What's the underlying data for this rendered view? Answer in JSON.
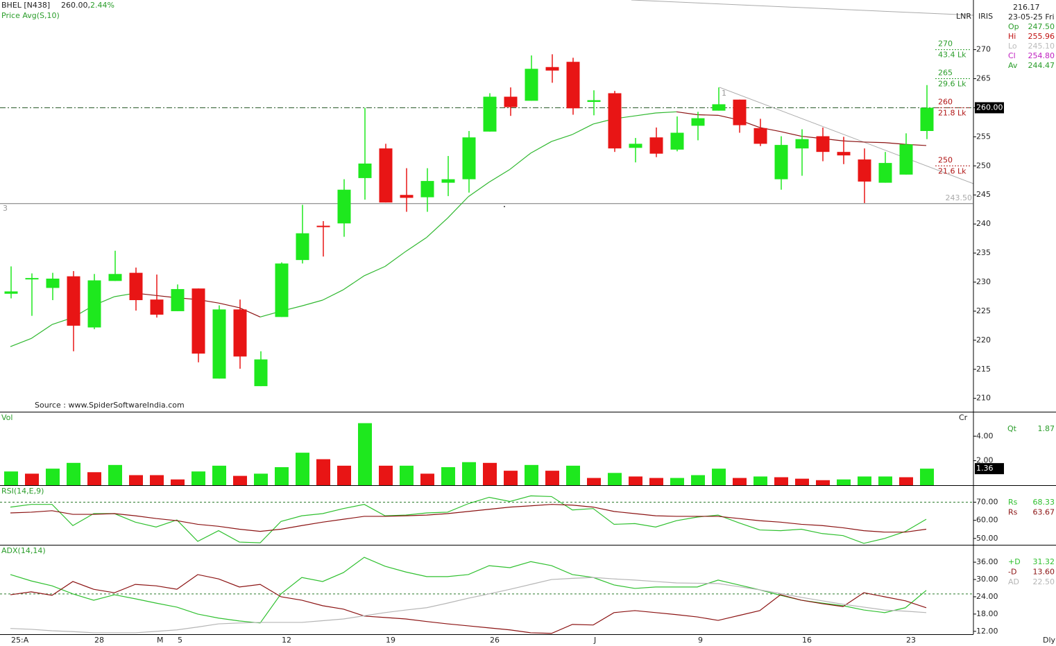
{
  "header": {
    "symbol": "BHEL [N438]",
    "price": "260.00,",
    "change": "2.44%",
    "cursor_value": "216.17",
    "date": "23-05-25 Fri",
    "tags": [
      "LNR",
      "IRIS"
    ],
    "ohlc": [
      {
        "key": "Op",
        "value": "247.50",
        "color": "#2a9d2a"
      },
      {
        "key": "Hi",
        "value": "255.96",
        "color": "#c01010"
      },
      {
        "key": "Lo",
        "value": "245.10",
        "color": "#bbbbbb"
      },
      {
        "key": "Cl",
        "value": "254.80",
        "color": "#c020c0"
      },
      {
        "key": "Av",
        "value": "244.47",
        "color": "#2a9d2a"
      }
    ]
  },
  "chart_data": [
    {
      "type": "candlestick",
      "categories": [
        "25:A",
        null,
        null,
        null,
        "28",
        null,
        null,
        "M",
        "5",
        null,
        null,
        null,
        null,
        "12",
        null,
        null,
        null,
        null,
        "19",
        null,
        null,
        null,
        null,
        "26",
        null,
        null,
        null,
        null,
        "J",
        null,
        null,
        null,
        null,
        "9",
        null,
        null,
        null,
        null,
        "16",
        null,
        null,
        null,
        null,
        "23",
        null
      ],
      "period": "Dly",
      "open": [
        228.0,
        230.5,
        229.0,
        231.0,
        222.2,
        230.2,
        231.6,
        227.0,
        225.0,
        228.9,
        213.4,
        225.3,
        212.1,
        224.0,
        233.8,
        239.7,
        240.1,
        247.9,
        253.0,
        245.0,
        244.6,
        247.1,
        247.7,
        255.9,
        261.9,
        261.2,
        267.0,
        267.9,
        261.0,
        262.5,
        253.1,
        254.9,
        252.8,
        256.9,
        259.5,
        261.4,
        256.5,
        247.7,
        253.0,
        255.1,
        252.4,
        251.1,
        247.1,
        248.5,
        256.0
      ],
      "high": [
        232.7,
        231.5,
        231.6,
        231.9,
        231.4,
        235.4,
        232.5,
        231.3,
        229.6,
        228.9,
        226.0,
        227.0,
        218.1,
        233.4,
        243.3,
        240.5,
        247.7,
        260.0,
        253.8,
        249.6,
        249.6,
        251.7,
        256.0,
        262.5,
        263.5,
        269.0,
        269.2,
        268.6,
        263.0,
        262.9,
        254.8,
        256.6,
        258.5,
        259.3,
        263.5,
        261.4,
        258.1,
        255.1,
        256.3,
        256.6,
        255.0,
        253.0,
        252.4,
        255.6,
        263.9
      ],
      "low": [
        227.2,
        224.2,
        226.9,
        218.1,
        221.9,
        230.2,
        225.1,
        223.9,
        225.0,
        216.2,
        213.4,
        215.1,
        212.1,
        224.0,
        233.2,
        234.4,
        237.8,
        244.2,
        243.7,
        242.1,
        242.1,
        244.8,
        245.4,
        255.9,
        258.6,
        261.2,
        264.3,
        258.8,
        258.7,
        252.4,
        250.6,
        251.5,
        252.5,
        254.4,
        259.5,
        255.7,
        253.4,
        245.9,
        248.3,
        250.8,
        250.3,
        243.6,
        247.1,
        248.5,
        254.6
      ],
      "close": [
        228.4,
        230.7,
        230.6,
        222.5,
        230.3,
        231.4,
        226.9,
        224.4,
        228.8,
        217.7,
        225.3,
        217.2,
        216.7,
        233.2,
        238.4,
        239.5,
        245.9,
        250.4,
        243.7,
        244.5,
        247.4,
        247.7,
        254.9,
        261.9,
        260.1,
        266.7,
        266.4,
        259.9,
        261.3,
        253.0,
        253.8,
        252.1,
        255.7,
        258.2,
        260.6,
        257.0,
        253.8,
        253.6,
        254.6,
        252.4,
        251.8,
        247.3,
        250.5,
        253.7,
        260.0
      ],
      "up_color": "#1ee81e",
      "down_color": "#e81515",
      "ma": {
        "name": "Price Avg(S,10)",
        "up_color": "#2fb82f",
        "down_color": "#8b1212",
        "values": [
          218.9,
          220.3,
          222.7,
          223.9,
          226.0,
          227.5,
          228.1,
          227.7,
          227.3,
          227.0,
          226.4,
          225.6,
          224.0,
          225.0,
          225.9,
          226.9,
          228.7,
          231.1,
          232.7,
          235.3,
          237.7,
          241.0,
          244.7,
          247.2,
          249.4,
          252.2,
          254.2,
          255.4,
          257.2,
          258.1,
          258.6,
          259.1,
          259.3,
          258.8,
          258.7,
          257.9,
          256.6,
          255.9,
          255.1,
          254.7,
          254.3,
          254.1,
          254.0,
          253.7,
          253.5
        ]
      },
      "ylim": [
        207.7,
        278.3
      ],
      "yticks": [
        210,
        215,
        220,
        225,
        230,
        235,
        240,
        245,
        250,
        255,
        260,
        265,
        270
      ],
      "last_price": {
        "value": 260,
        "label": "260.00"
      },
      "support": {
        "value": 243.5,
        "label": "243.50"
      },
      "levels": [
        {
          "price": 270,
          "volume": "43.4 Lk",
          "color": "#2a9d2a"
        },
        {
          "price": 265,
          "volume": "29.6 Lk",
          "color": "#2a9d2a"
        },
        {
          "price": 260,
          "volume": "21.8 Lk",
          "color": "#b01414"
        },
        {
          "price": 250,
          "volume": "21.6 Lk",
          "color": "#b01414"
        }
      ],
      "source": "Source : www.SpiderSoftwareIndia.com",
      "markers": [
        "3",
        "1"
      ]
    },
    {
      "type": "bar",
      "title": "Vol",
      "unit": "Cr",
      "last_label": "1.36",
      "qty": {
        "key": "Qt",
        "value": "1.87"
      },
      "values": [
        1.12,
        0.94,
        1.35,
        1.82,
        1.06,
        1.65,
        0.82,
        0.82,
        0.47,
        1.12,
        1.59,
        0.76,
        0.94,
        1.47,
        2.65,
        2.12,
        1.59,
        5.06,
        1.59,
        1.59,
        0.94,
        1.47,
        1.88,
        1.82,
        1.18,
        1.65,
        1.18,
        1.59,
        0.59,
        1.0,
        0.71,
        0.59,
        0.59,
        0.82,
        1.35,
        0.59,
        0.71,
        0.65,
        0.53,
        0.41,
        0.47,
        0.71,
        0.71,
        0.65,
        1.35
      ],
      "colors": [
        "#1ee81e",
        "#e81515",
        "#1ee81e",
        "#1ee81e",
        "#e81515",
        "#1ee81e",
        "#e81515",
        "#e81515",
        "#e81515",
        "#1ee81e",
        "#1ee81e",
        "#e81515",
        "#1ee81e",
        "#1ee81e",
        "#1ee81e",
        "#e81515",
        "#e81515",
        "#1ee81e",
        "#e81515",
        "#1ee81e",
        "#e81515",
        "#1ee81e",
        "#1ee81e",
        "#e81515",
        "#e81515",
        "#1ee81e",
        "#e81515",
        "#1ee81e",
        "#e81515",
        "#1ee81e",
        "#e81515",
        "#e81515",
        "#1ee81e",
        "#1ee81e",
        "#1ee81e",
        "#e81515",
        "#1ee81e",
        "#e81515",
        "#e81515",
        "#e81515",
        "#1ee81e",
        "#1ee81e",
        "#1ee81e",
        "#e81515",
        "#1ee81e"
      ],
      "ylim": [
        0,
        5.88
      ],
      "yticks": [
        {
          "value": 2,
          "label": "2.00"
        },
        {
          "value": 4,
          "label": "4.00"
        }
      ]
    },
    {
      "type": "line",
      "title": "RSI(14,E,9)",
      "ref_line": 70,
      "ylim": [
        46.5,
        79.0
      ],
      "yticks": [
        {
          "value": 50,
          "label": "50.00"
        },
        {
          "value": 60,
          "label": "60.00"
        },
        {
          "value": 70,
          "label": "70.00"
        }
      ],
      "series": [
        {
          "name": "Rs",
          "color": "#2fc02f",
          "last_label": "68.33",
          "values": [
            67.3,
            68.8,
            68.8,
            57.1,
            63.7,
            63.7,
            59.0,
            56.3,
            60.2,
            48.4,
            54.3,
            48.0,
            47.6,
            59.4,
            62.5,
            63.7,
            66.5,
            68.8,
            62.5,
            62.9,
            64.1,
            64.5,
            69.2,
            72.7,
            70.4,
            73.5,
            73.1,
            65.7,
            66.5,
            57.8,
            58.2,
            56.3,
            59.8,
            61.8,
            62.9,
            58.6,
            54.7,
            54.3,
            55.1,
            52.7,
            51.6,
            47.3,
            50.0,
            53.9,
            60.6
          ]
        },
        {
          "name": "Rs",
          "color": "#8b1212",
          "last_label": "63.67",
          "values": [
            64.1,
            64.5,
            65.3,
            63.3,
            63.3,
            63.7,
            62.5,
            61.0,
            59.8,
            57.8,
            56.7,
            55.1,
            53.9,
            55.1,
            57.1,
            59.0,
            60.6,
            62.2,
            62.2,
            62.5,
            62.9,
            63.7,
            64.9,
            66.1,
            67.3,
            68.0,
            68.8,
            68.4,
            67.3,
            64.9,
            63.7,
            62.5,
            62.2,
            62.2,
            62.2,
            61.0,
            59.8,
            59.0,
            57.8,
            57.1,
            55.9,
            54.3,
            53.5,
            53.5,
            55.1
          ]
        }
      ]
    },
    {
      "type": "line",
      "title": "ADX(14,14)",
      "ref_line": 25,
      "ylim": [
        11.0,
        41.8
      ],
      "yticks": [
        {
          "value": 12,
          "label": "12.00"
        },
        {
          "value": 18,
          "label": "18.00"
        },
        {
          "value": 24,
          "label": "24.00"
        },
        {
          "value": 30,
          "label": "30.00"
        },
        {
          "value": 36,
          "label": "36.00"
        }
      ],
      "series": [
        {
          "name": "+D",
          "color": "#2fc02f",
          "last_label": "31.32",
          "values": [
            31.7,
            29.5,
            27.8,
            25.0,
            22.8,
            24.7,
            23.3,
            21.8,
            20.4,
            18.0,
            16.6,
            15.6,
            14.9,
            25.0,
            30.7,
            29.3,
            32.4,
            37.7,
            34.6,
            32.6,
            31.0,
            31.0,
            31.7,
            34.8,
            34.1,
            36.2,
            34.8,
            31.7,
            30.7,
            28.1,
            26.9,
            27.4,
            27.4,
            27.4,
            29.8,
            28.1,
            26.4,
            24.5,
            22.8,
            21.8,
            20.9,
            19.4,
            18.5,
            20.2,
            26.2
          ]
        },
        {
          "name": "-D",
          "color": "#8b1212",
          "last_label": "13.60",
          "values": [
            24.7,
            25.7,
            24.5,
            29.3,
            26.6,
            25.4,
            28.3,
            27.8,
            26.6,
            31.7,
            30.2,
            27.4,
            28.3,
            24.0,
            22.8,
            20.9,
            19.7,
            17.3,
            16.8,
            16.3,
            15.4,
            14.6,
            13.9,
            13.2,
            12.5,
            11.5,
            11.3,
            14.4,
            14.2,
            18.5,
            19.2,
            18.5,
            17.8,
            17.0,
            15.8,
            17.5,
            19.2,
            24.7,
            22.8,
            21.6,
            20.6,
            25.4,
            24.0,
            22.6,
            20.2
          ]
        },
        {
          "name": "AD",
          "color": "#b5b5b5",
          "last_label": "22.50",
          "values": [
            13.0,
            12.7,
            12.2,
            11.9,
            11.5,
            11.5,
            11.5,
            12.0,
            12.5,
            13.5,
            14.6,
            14.9,
            15.1,
            15.1,
            15.1,
            15.7,
            16.3,
            17.4,
            18.5,
            19.4,
            20.2,
            21.8,
            23.5,
            25.0,
            26.6,
            28.3,
            30.0,
            30.4,
            30.7,
            30.2,
            29.8,
            29.3,
            28.8,
            28.7,
            28.6,
            27.5,
            26.4,
            25.1,
            23.8,
            22.6,
            21.4,
            20.4,
            19.4,
            19.0,
            18.5
          ]
        }
      ]
    }
  ]
}
